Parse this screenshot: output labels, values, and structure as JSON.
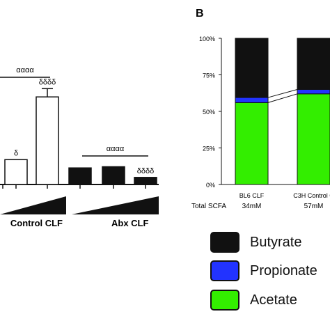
{
  "figure": {
    "panel_label": "B"
  },
  "chart_data": [
    {
      "type": "bar",
      "panel": "A",
      "groups": [
        {
          "label": "Control CLF",
          "bars": [
            {
              "value": 0.0,
              "annotation": ""
            },
            {
              "value": 1.05,
              "annotation": "δ"
            },
            {
              "value": 3.7,
              "error": 0.35,
              "annotation": "δδδδ"
            }
          ],
          "bracket_label": "αααα",
          "color": "#ffffff"
        },
        {
          "label": "Abx CLF",
          "bars": [
            {
              "value": 0.7,
              "annotation": ""
            },
            {
              "value": 0.75,
              "annotation": ""
            },
            {
              "value": 0.3,
              "annotation": "δδδδ"
            }
          ],
          "bracket_label": "αααα",
          "color": "#111111"
        }
      ],
      "ylim": [
        0,
        5
      ]
    },
    {
      "type": "bar",
      "panel": "B",
      "stacked": true,
      "normalized": true,
      "yticks": [
        "0%",
        "25%",
        "50%",
        "75%",
        "100%"
      ],
      "ylim": [
        0,
        100
      ],
      "categories": [
        "BL6 CLF",
        "C3H Control C"
      ],
      "total_label": "Total SCFA",
      "totals": [
        "34mM",
        "57mM"
      ],
      "series": [
        {
          "name": "Acetate",
          "color": "#33ee00",
          "values": [
            56,
            62
          ]
        },
        {
          "name": "Propionate",
          "color": "#2233ff",
          "values": [
            3.5,
            3
          ]
        },
        {
          "name": "Butyrate",
          "color": "#111111",
          "values": [
            40.5,
            35
          ]
        }
      ]
    }
  ],
  "legend": {
    "items": [
      {
        "label": "Butyrate",
        "color": "#111111"
      },
      {
        "label": "Propionate",
        "color": "#2233ff"
      },
      {
        "label": "Acetate",
        "color": "#33ee00"
      }
    ]
  }
}
